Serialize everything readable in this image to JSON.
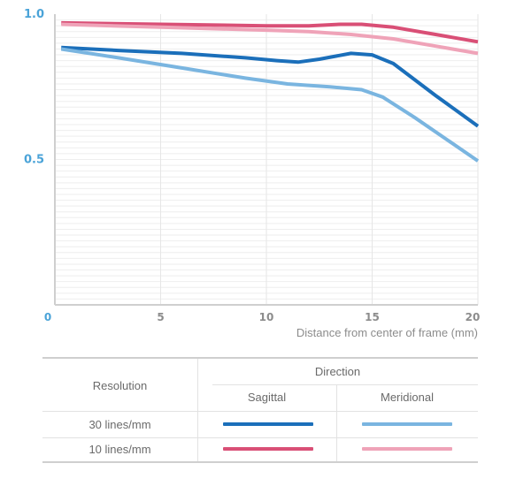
{
  "chart_data": {
    "type": "line",
    "xlabel": "Distance from center of frame (mm)",
    "ylabel": "",
    "xlim": [
      0,
      20
    ],
    "ylim": [
      0,
      1.0
    ],
    "x_ticks": [
      "0",
      "5",
      "10",
      "15",
      "20"
    ],
    "y_ticks": [
      "0.5",
      "1.0"
    ],
    "grid": "horizontal-fine",
    "series": [
      {
        "name": "10 lines/mm Sagittal",
        "color": "#d94f76",
        "x": [
          0.3,
          5,
          10,
          12,
          13.5,
          14.5,
          16,
          18,
          20
        ],
        "y": [
          0.97,
          0.965,
          0.96,
          0.96,
          0.965,
          0.965,
          0.955,
          0.93,
          0.905
        ]
      },
      {
        "name": "10 lines/mm Meridional",
        "color": "#efa3b8",
        "x": [
          0.3,
          5,
          10,
          12,
          14,
          16,
          18,
          20
        ],
        "y": [
          0.965,
          0.955,
          0.945,
          0.94,
          0.93,
          0.915,
          0.89,
          0.865
        ]
      },
      {
        "name": "30 lines/mm Sagittal",
        "color": "#1b6fba",
        "x": [
          0.3,
          3,
          6,
          9,
          10.5,
          11.5,
          12.5,
          14,
          15,
          16,
          18,
          20
        ],
        "y": [
          0.885,
          0.875,
          0.865,
          0.85,
          0.84,
          0.835,
          0.845,
          0.865,
          0.86,
          0.83,
          0.72,
          0.615
        ]
      },
      {
        "name": "30 lines/mm Meridional",
        "color": "#7ab5e0",
        "x": [
          0.3,
          3,
          6,
          9,
          11,
          13,
          14.5,
          15.5,
          17,
          18.5,
          20
        ],
        "y": [
          0.88,
          0.85,
          0.815,
          0.78,
          0.76,
          0.75,
          0.74,
          0.715,
          0.645,
          0.57,
          0.495
        ]
      }
    ]
  },
  "legend": {
    "resolution_header": "Resolution",
    "direction_header": "Direction",
    "sagittal_label": "Sagittal",
    "meridional_label": "Meridional",
    "rows": [
      {
        "label": "30 lines/mm",
        "sagittal_color": "#1b6fba",
        "meridional_color": "#7ab5e0"
      },
      {
        "label": "10 lines/mm",
        "sagittal_color": "#d94f76",
        "meridional_color": "#efa3b8"
      }
    ]
  }
}
